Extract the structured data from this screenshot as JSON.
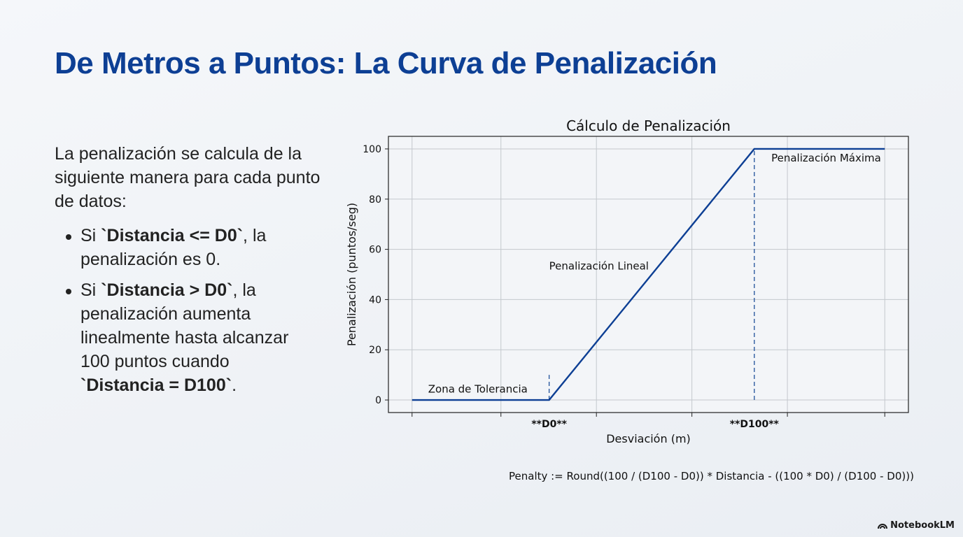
{
  "slide": {
    "title": "De Metros a Puntos: La Curva de Penalización",
    "intro": "La penalización se calcula de la siguiente manera para cada punto de datos:",
    "bullets": [
      {
        "pre": "Si ",
        "code": "`Distancia <= D0`",
        "post": ", la penalización es 0."
      },
      {
        "pre": "Si ",
        "code": "`Distancia > D0`",
        "post": ", la penalización aumenta linealmente hasta alcanzar 100 puntos cuando ",
        "code2": "`Distancia = D100`",
        "post2": "."
      }
    ],
    "formula": "Penalty := Round((100 / (D100 - D0)) * Distancia - ((100 * D0) / (D100 - D0)))",
    "brand": "NotebookLM"
  },
  "chart_data": {
    "type": "line",
    "title": "Cálculo de Penalización",
    "xlabel": "Desviación (m)",
    "ylabel": "Penalización (puntos/seg)",
    "xlim": [
      -0.25,
      5.25
    ],
    "ylim": [
      -5,
      105
    ],
    "yticks": [
      0,
      20,
      40,
      60,
      80,
      100
    ],
    "xgrid": [
      0,
      0.94,
      1.95,
      2.96,
      3.97,
      5
    ],
    "xtick_labels": [
      {
        "x": 1.45,
        "label": "**D0**"
      },
      {
        "x": 3.62,
        "label": "**D100**"
      }
    ],
    "series": [
      {
        "x": [
          0,
          1.45,
          3.62,
          5
        ],
        "y": [
          0,
          0,
          100,
          100
        ],
        "color": "#0d3f94"
      }
    ],
    "vlines": [
      {
        "x": 1.45,
        "y": [
          0,
          10
        ],
        "style": "dashed",
        "color": "#2c5aa0"
      },
      {
        "x": 3.62,
        "y": [
          0,
          100
        ],
        "style": "dashed",
        "color": "#2c5aa0"
      }
    ],
    "annotations": [
      {
        "text": "Zona de Tolerancia",
        "x": 0.17,
        "y": 3
      },
      {
        "text": "Penalización Lineal",
        "x": 1.45,
        "y": 52
      },
      {
        "text": "Penalización Máxima",
        "x": 3.8,
        "y": 95
      }
    ],
    "grid": true
  }
}
